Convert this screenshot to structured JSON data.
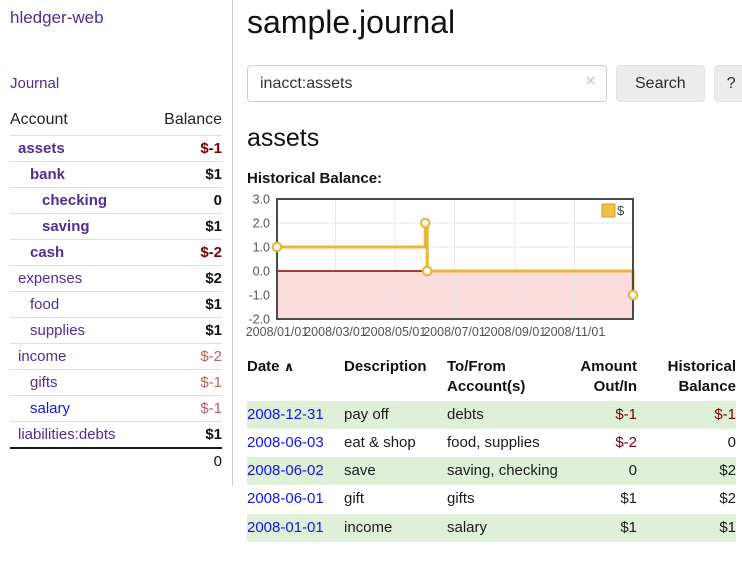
{
  "app": {
    "title": "hledger-web"
  },
  "sidebar": {
    "journal_link": "Journal",
    "accounts_header": {
      "account": "Account",
      "balance": "Balance"
    },
    "accounts": [
      {
        "name": "assets",
        "indent": 1,
        "style": "bold",
        "balance": "$-1",
        "balance_style": "negs"
      },
      {
        "name": "bank",
        "indent": 2,
        "style": "bold",
        "balance": "$1",
        "balance_style": ""
      },
      {
        "name": "checking",
        "indent": 3,
        "style": "bold",
        "balance": "0",
        "balance_style": ""
      },
      {
        "name": "saving",
        "indent": 3,
        "style": "bold",
        "balance": "$1",
        "balance_style": ""
      },
      {
        "name": "cash",
        "indent": 2,
        "style": "bold",
        "balance": "$-2",
        "balance_style": "negs"
      },
      {
        "name": "expenses",
        "indent": 1,
        "style": "",
        "balance": "$2",
        "balance_style": ""
      },
      {
        "name": "food",
        "indent": 2,
        "style": "",
        "balance": "$1",
        "balance_style": ""
      },
      {
        "name": "supplies",
        "indent": 2,
        "style": "",
        "balance": "$1",
        "balance_style": ""
      },
      {
        "name": "income",
        "indent": 1,
        "style": "",
        "balance": "$-2",
        "balance_style": "negm"
      },
      {
        "name": "gifts",
        "indent": 2,
        "style": "",
        "balance": "$-1",
        "balance_style": "negm"
      },
      {
        "name": "salary",
        "indent": 2,
        "style": "blue",
        "balance": "$-1",
        "balance_style": "negm"
      },
      {
        "name": "liabilities:debts",
        "indent": 1,
        "style": "",
        "balance": "$1",
        "balance_style": ""
      }
    ],
    "total": "0"
  },
  "main": {
    "title": "sample.journal",
    "search": {
      "value": "inacct:assets",
      "clear_icon": "✕",
      "button": "Search",
      "help_button": "?"
    },
    "account_heading": "assets",
    "chart_heading": "Historical Balance:"
  },
  "chart_data": {
    "type": "line",
    "title": "Historical Balance",
    "step": true,
    "series": [
      {
        "name": "$",
        "color": "#e8b63d",
        "points": [
          {
            "date": "2008-01-01",
            "x": 0,
            "y": 1
          },
          {
            "date": "2008-06-01",
            "x": 152,
            "y": 2
          },
          {
            "date": "2008-06-03",
            "x": 154,
            "y": 0
          },
          {
            "date": "2008-12-31",
            "x": 365,
            "y": -1
          }
        ]
      }
    ],
    "ylim": [
      -2,
      3
    ],
    "y_ticks": [
      3.0,
      2.0,
      1.0,
      0.0,
      -1.0,
      -2.0
    ],
    "x_range_days": [
      0,
      365
    ],
    "x_tick_days": [
      0,
      60,
      121,
      182,
      244,
      305
    ],
    "x_ticks": [
      "2008/01/01",
      "2008/03/01",
      "2008/05/01",
      "2008/07/01",
      "2008/09/01",
      "2008/11/01"
    ],
    "grid": true,
    "legend_position": "top-right",
    "colors": {
      "grid": "#e8e8e8",
      "border": "#4a4a4a",
      "zero_line": "#8b0000",
      "negative_region": "#fbdcdc",
      "axis_text": "#545454",
      "legend_swatch": "#edc240",
      "legend_swatch_border": "#cfa22c"
    }
  },
  "register": {
    "columns": [
      "Date",
      "Description",
      "To/From Account(s)",
      "Amount Out/In",
      "Historical Balance"
    ],
    "sort_indicator": "∧",
    "rows": [
      {
        "date": "2008-12-31",
        "desc": "pay off",
        "accounts": "debts",
        "amount": "$-1",
        "amount_neg": true,
        "balance": "$-1",
        "balance_neg": true,
        "shaded": true
      },
      {
        "date": "2008-06-03",
        "desc": "eat & shop",
        "accounts": "food, supplies",
        "amount": "$-2",
        "amount_neg": true,
        "balance": "0",
        "balance_neg": false,
        "shaded": false
      },
      {
        "date": "2008-06-02",
        "desc": "save",
        "accounts": "saving, checking",
        "amount": "0",
        "amount_neg": false,
        "balance": "$2",
        "balance_neg": false,
        "shaded": true
      },
      {
        "date": "2008-06-01",
        "desc": "gift",
        "accounts": "gifts",
        "amount": "$1",
        "amount_neg": false,
        "balance": "$2",
        "balance_neg": false,
        "shaded": false
      },
      {
        "date": "2008-01-01",
        "desc": "income",
        "accounts": "salary",
        "amount": "$1",
        "amount_neg": false,
        "balance": "$1",
        "balance_neg": false,
        "shaded": true
      }
    ]
  }
}
